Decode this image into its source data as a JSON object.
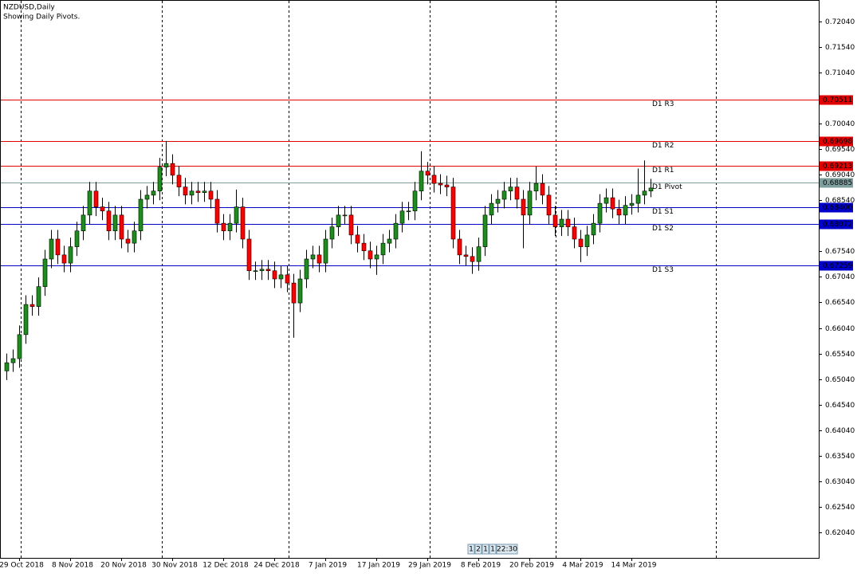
{
  "chart_data": {
    "type": "candlestick",
    "title": "NZDUSD,Daily",
    "subtitle": "Showing Daily Pivots.",
    "categories": [
      null,
      null,
      "29 Oct 2018",
      null,
      null,
      null,
      null,
      null,
      null,
      null,
      "8 Nov 2018",
      null,
      null,
      null,
      null,
      null,
      null,
      null,
      "20 Nov 2018",
      null,
      null,
      null,
      null,
      null,
      null,
      null,
      "30 Nov 2018",
      null,
      null,
      null,
      null,
      null,
      null,
      null,
      "12 Dec 2018",
      null,
      null,
      null,
      null,
      null,
      null,
      null,
      "24 Dec 2018",
      null,
      null,
      null,
      null,
      null,
      null,
      null,
      "7 Jan 2019",
      null,
      null,
      null,
      null,
      null,
      null,
      null,
      "17 Jan 2019",
      null,
      null,
      null,
      null,
      null,
      null,
      null,
      "29 Jan 2019",
      null,
      null,
      null,
      null,
      null,
      null,
      null,
      "8 Feb 2019",
      null,
      null,
      null,
      null,
      null,
      null,
      null,
      "20 Feb 2019",
      null,
      null,
      null,
      null,
      null,
      null,
      null,
      "4 Mar 2019",
      null,
      null,
      null,
      null,
      null,
      null,
      null,
      "14 Mar 2019",
      null,
      null,
      null
    ],
    "open": [
      0.652,
      0.6536,
      0.6544,
      0.6591,
      0.665,
      0.6646,
      0.6685,
      0.6739,
      0.6778,
      0.6747,
      0.6731,
      0.6763,
      0.6794,
      0.6825,
      0.6872,
      0.6841,
      0.6833,
      0.6794,
      0.6825,
      0.6778,
      0.677,
      0.6794,
      0.6856,
      0.6864,
      0.6872,
      0.6919,
      0.6926,
      0.6903,
      0.688,
      0.6864,
      0.6872,
      0.6869,
      0.6872,
      0.6856,
      0.6809,
      0.6794,
      0.6809,
      0.6841,
      0.6778,
      0.6716,
      0.6716,
      0.6719,
      0.6716,
      0.67,
      0.6708,
      0.6692,
      0.6653,
      0.67,
      0.6739,
      0.6747,
      0.6731,
      0.6778,
      0.6802,
      0.6825,
      0.6825,
      0.6786,
      0.677,
      0.6755,
      0.6739,
      0.6747,
      0.677,
      0.6778,
      0.6809,
      0.6833,
      0.6833,
      0.6872,
      0.6911,
      0.6903,
      0.6887,
      0.6884,
      0.688,
      0.6778,
      0.6747,
      0.6744,
      0.6734,
      0.6763,
      0.6825,
      0.6848,
      0.6856,
      0.6872,
      0.688,
      0.6856,
      0.6825,
      0.6872,
      0.6887,
      0.6864,
      0.6825,
      0.6802,
      0.6817,
      0.6802,
      0.6778,
      0.6763,
      0.6786,
      0.6809,
      0.6848,
      0.6859,
      0.6837,
      0.6825,
      0.6844,
      0.6848,
      0.6864,
      0.6872
    ],
    "high": [
      0.6554,
      0.6562,
      0.6609,
      0.6668,
      0.6668,
      0.6703,
      0.6757,
      0.6796,
      0.6796,
      0.6765,
      0.6781,
      0.6812,
      0.6843,
      0.689,
      0.689,
      0.6859,
      0.6851,
      0.6843,
      0.6843,
      0.6796,
      0.6812,
      0.6874,
      0.6882,
      0.689,
      0.6937,
      0.697,
      0.6944,
      0.6921,
      0.6898,
      0.689,
      0.689,
      0.689,
      0.689,
      0.6874,
      0.6827,
      0.6827,
      0.6875,
      0.6859,
      0.6796,
      0.6734,
      0.6737,
      0.6737,
      0.6734,
      0.6726,
      0.6726,
      0.671,
      0.6718,
      0.6757,
      0.6765,
      0.6765,
      0.6796,
      0.682,
      0.6843,
      0.6843,
      0.6843,
      0.6804,
      0.6788,
      0.6773,
      0.6765,
      0.6788,
      0.6796,
      0.6827,
      0.6851,
      0.6851,
      0.689,
      0.695,
      0.6929,
      0.6921,
      0.6905,
      0.6902,
      0.6898,
      0.6796,
      0.6765,
      0.6762,
      0.6781,
      0.6843,
      0.6866,
      0.6874,
      0.689,
      0.6898,
      0.6898,
      0.6874,
      0.689,
      0.692,
      0.6905,
      0.6882,
      0.6843,
      0.6835,
      0.6835,
      0.682,
      0.6796,
      0.6804,
      0.6827,
      0.6866,
      0.6877,
      0.6877,
      0.6855,
      0.6862,
      0.6866,
      0.6916,
      0.6932,
      0.6896
    ],
    "low": [
      0.6502,
      0.6518,
      0.6526,
      0.6573,
      0.6628,
      0.6628,
      0.6667,
      0.6721,
      0.6729,
      0.6713,
      0.6713,
      0.6745,
      0.6776,
      0.6807,
      0.6823,
      0.6815,
      0.6776,
      0.6776,
      0.676,
      0.6752,
      0.6752,
      0.6776,
      0.6838,
      0.6846,
      0.6854,
      0.6901,
      0.6885,
      0.6862,
      0.6846,
      0.6846,
      0.6851,
      0.6851,
      0.6838,
      0.6791,
      0.6776,
      0.6776,
      0.6791,
      0.676,
      0.6698,
      0.6698,
      0.6698,
      0.6698,
      0.6682,
      0.6682,
      0.6674,
      0.6585,
      0.6635,
      0.6682,
      0.6721,
      0.6713,
      0.6713,
      0.676,
      0.6784,
      0.6807,
      0.6768,
      0.6752,
      0.6737,
      0.6721,
      0.6708,
      0.6729,
      0.6752,
      0.676,
      0.6791,
      0.6815,
      0.6815,
      0.6854,
      0.6885,
      0.6869,
      0.6866,
      0.6862,
      0.676,
      0.6729,
      0.6726,
      0.671,
      0.6716,
      0.6745,
      0.6807,
      0.683,
      0.6838,
      0.6854,
      0.6838,
      0.676,
      0.6807,
      0.6854,
      0.6846,
      0.6807,
      0.6784,
      0.6784,
      0.6784,
      0.676,
      0.6733,
      0.6745,
      0.6768,
      0.6791,
      0.683,
      0.6819,
      0.6807,
      0.6807,
      0.6826,
      0.683,
      0.6846,
      0.686
    ],
    "close": [
      0.6536,
      0.6544,
      0.6591,
      0.665,
      0.6646,
      0.6685,
      0.6739,
      0.6778,
      0.6747,
      0.6731,
      0.6763,
      0.6794,
      0.6825,
      0.6872,
      0.6841,
      0.6833,
      0.6794,
      0.6825,
      0.6778,
      0.677,
      0.6794,
      0.6856,
      0.6864,
      0.6872,
      0.6919,
      0.6926,
      0.6903,
      0.688,
      0.6864,
      0.6872,
      0.6869,
      0.6872,
      0.6856,
      0.6809,
      0.6794,
      0.6809,
      0.6841,
      0.6778,
      0.6716,
      0.6716,
      0.6719,
      0.6716,
      0.67,
      0.6708,
      0.6692,
      0.6653,
      0.67,
      0.6739,
      0.6747,
      0.6731,
      0.6778,
      0.6802,
      0.6825,
      0.6825,
      0.6786,
      0.677,
      0.6755,
      0.6739,
      0.6747,
      0.677,
      0.6778,
      0.6809,
      0.6833,
      0.6833,
      0.6872,
      0.6911,
      0.6903,
      0.6887,
      0.6884,
      0.688,
      0.6778,
      0.6747,
      0.6744,
      0.6734,
      0.6763,
      0.6825,
      0.6848,
      0.6856,
      0.6872,
      0.688,
      0.6856,
      0.6825,
      0.6872,
      0.6887,
      0.6864,
      0.6825,
      0.6802,
      0.6817,
      0.6802,
      0.6778,
      0.6763,
      0.6786,
      0.6809,
      0.6848,
      0.6859,
      0.6837,
      0.6825,
      0.6844,
      0.6848,
      0.6864,
      0.6872,
      0.6878
    ],
    "up_color": "#1e8c1e",
    "down_color": "#ff0000",
    "ylim": [
      0.6154,
      0.7246
    ],
    "yticks": [
      {
        "value": 0.6204,
        "label": "0.62040"
      },
      {
        "value": 0.6254,
        "label": "0.62540"
      },
      {
        "value": 0.6304,
        "label": "0.63040"
      },
      {
        "value": 0.6354,
        "label": "0.63540"
      },
      {
        "value": 0.6404,
        "label": "0.64040"
      },
      {
        "value": 0.6454,
        "label": "0.64540"
      },
      {
        "value": 0.6504,
        "label": "0.65040"
      },
      {
        "value": 0.6554,
        "label": "0.65540"
      },
      {
        "value": 0.6604,
        "label": "0.66040"
      },
      {
        "value": 0.6654,
        "label": "0.66540"
      },
      {
        "value": 0.6704,
        "label": "0.67040"
      },
      {
        "value": 0.6754,
        "label": "0.67540"
      },
      {
        "value": 0.6854,
        "label": "0.68540"
      },
      {
        "value": 0.6904,
        "label": "0.69040"
      },
      {
        "value": 0.6954,
        "label": "0.69540"
      },
      {
        "value": 0.7004,
        "label": "0.70040"
      },
      {
        "value": 0.7104,
        "label": "0.71040"
      },
      {
        "value": 0.7154,
        "label": "0.71540"
      },
      {
        "value": 0.7204,
        "label": "0.72040"
      }
    ],
    "pivots": {
      "names": [
        "D1 R3",
        "D1 R2",
        "D1 R1",
        "D1 Pivot",
        "D1 S1",
        "D1 S2",
        "D1 S3"
      ],
      "values": [
        0.70511,
        0.69698,
        0.69213,
        0.68885,
        0.684,
        0.68072,
        0.67259
      ],
      "value_labels": [
        "0.70511",
        "0.69698",
        "0.69213",
        "0.68885",
        "0.68400",
        "0.68072",
        "0.67259"
      ],
      "colors": [
        "#e00000",
        "#e00000",
        "#e00000",
        "#7f9f9f",
        "#0000c8",
        "#0000c8",
        "#0000c8"
      ]
    },
    "toolbar_items": [
      "1",
      "2",
      "1",
      "1",
      "22:30"
    ]
  }
}
